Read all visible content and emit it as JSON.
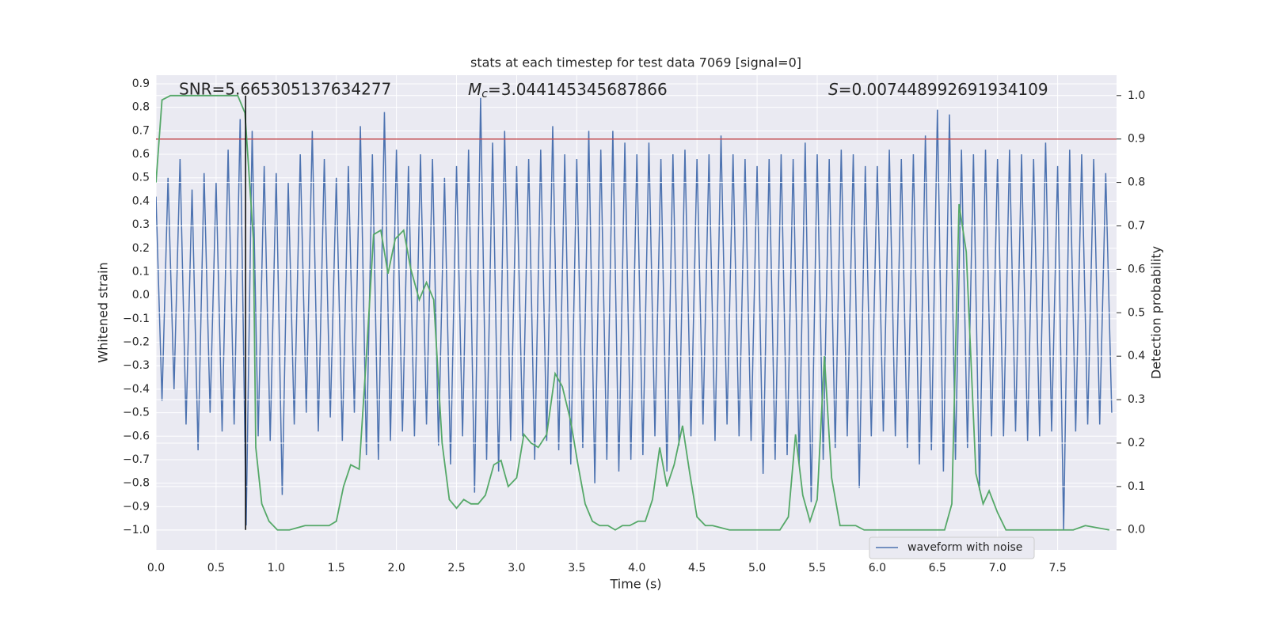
{
  "chart_data": {
    "type": "line",
    "title": "stats at each timestep for test data 7069 [signal=0]",
    "x_label": "Time (s)",
    "y_label": "Whitened strain",
    "y2_label": "Detection probability",
    "snr_label": "SNR=5.665305137634277",
    "chirp_mass": {
      "symbol": "M",
      "subscript": "c",
      "value_text": "=3.044145345687866"
    },
    "s_label": {
      "symbol": "S",
      "value_text": "=0.007448992691934109"
    },
    "xlim": [
      0,
      7.99
    ],
    "ylim": [
      -1.084,
      0.937
    ],
    "y2lim": [
      -0.046,
      1.047
    ],
    "xticks": [
      {
        "value": 0,
        "label": "0.0"
      },
      0.5,
      {
        "value": 1,
        "label": "1.0"
      },
      1.5,
      {
        "value": 2,
        "label": "2.0"
      },
      2.5,
      {
        "value": 3,
        "label": "3.0"
      },
      3.5,
      {
        "value": 4,
        "label": "4.0"
      },
      4.5,
      {
        "value": 5,
        "label": "5.0"
      },
      5.5,
      {
        "value": 6,
        "label": "6.0"
      },
      6.5,
      {
        "value": 7,
        "label": "7.0"
      },
      7.5
    ],
    "yticks": [
      {
        "value": -1,
        "label": "−1.0"
      },
      {
        "value": -0.9,
        "label": "−0.9"
      },
      {
        "value": -0.8,
        "label": "−0.8"
      },
      {
        "value": -0.7,
        "label": "−0.7"
      },
      {
        "value": -0.6,
        "label": "−0.6"
      },
      {
        "value": -0.5,
        "label": "−0.5"
      },
      {
        "value": -0.4,
        "label": "−0.4"
      },
      {
        "value": -0.3,
        "label": "−0.3"
      },
      {
        "value": -0.2,
        "label": "−0.2"
      },
      {
        "value": -0.1,
        "label": "−0.1"
      },
      {
        "value": 0,
        "label": "0.0"
      },
      0.1,
      0.2,
      0.3,
      0.4,
      0.5,
      0.6,
      0.7,
      0.8,
      0.9
    ],
    "y2ticks": [
      {
        "value": 0,
        "label": "0.0"
      },
      0.1,
      0.2,
      0.3,
      0.4,
      0.5,
      0.6,
      0.7,
      0.8,
      0.9,
      {
        "value": 1,
        "label": "1.0"
      }
    ],
    "grid": true,
    "y2grid": true,
    "background": "#eaeaf2",
    "legend": "lower right",
    "threshold": {
      "value": 0.9,
      "axis": "y2",
      "color": "#c44e52"
    },
    "marker_time": {
      "value": 0.745,
      "color": "#000000"
    },
    "series": [
      {
        "name": "waveform with noise",
        "color": "#4c72b0",
        "x": [
          0,
          0.05,
          0.1,
          0.15,
          0.2,
          0.25,
          0.3,
          0.35,
          0.4,
          0.45,
          0.5,
          0.55,
          0.6,
          0.65,
          0.7,
          0.75,
          0.8,
          0.85,
          0.9,
          0.95,
          1,
          1.05,
          1.1,
          1.15,
          1.2,
          1.25,
          1.3,
          1.35,
          1.4,
          1.45,
          1.5,
          1.55,
          1.6,
          1.65,
          1.7,
          1.75,
          1.8,
          1.85,
          1.9,
          1.95,
          2,
          2.05,
          2.1,
          2.15,
          2.2,
          2.25,
          2.3,
          2.35,
          2.4,
          2.45,
          2.5,
          2.55,
          2.6,
          2.65,
          2.7,
          2.75,
          2.8,
          2.85,
          2.9,
          2.95,
          3,
          3.05,
          3.1,
          3.15,
          3.2,
          3.25,
          3.3,
          3.35,
          3.4,
          3.45,
          3.5,
          3.55,
          3.6,
          3.65,
          3.7,
          3.75,
          3.8,
          3.85,
          3.9,
          3.95,
          4,
          4.05,
          4.1,
          4.15,
          4.2,
          4.25,
          4.3,
          4.35,
          4.4,
          4.45,
          4.5,
          4.55,
          4.6,
          4.65,
          4.7,
          4.75,
          4.8,
          4.85,
          4.9,
          4.95,
          5,
          5.05,
          5.1,
          5.15,
          5.2,
          5.25,
          5.3,
          5.35,
          5.4,
          5.45,
          5.5,
          5.55,
          5.6,
          5.65,
          5.7,
          5.75,
          5.8,
          5.85,
          5.9,
          5.95,
          6,
          6.05,
          6.1,
          6.15,
          6.2,
          6.25,
          6.3,
          6.35,
          6.4,
          6.45,
          6.5,
          6.55,
          6.6,
          6.65,
          6.7,
          6.75,
          6.8,
          6.85,
          6.9,
          6.95,
          7,
          7.05,
          7.1,
          7.15,
          7.2,
          7.25,
          7.3,
          7.35,
          7.4,
          7.45,
          7.5,
          7.55,
          7.6,
          7.65,
          7.7,
          7.75,
          7.8,
          7.85,
          7.9,
          7.95
        ],
        "values": [
          0.42,
          -0.45,
          0.5,
          -0.4,
          0.58,
          -0.55,
          0.45,
          -0.66,
          0.52,
          -0.5,
          0.48,
          -0.58,
          0.62,
          -0.55,
          0.75,
          -0.98,
          0.7,
          -0.6,
          0.55,
          -0.62,
          0.52,
          -0.85,
          0.48,
          -0.55,
          0.6,
          -0.5,
          0.7,
          -0.58,
          0.58,
          -0.52,
          0.5,
          -0.62,
          0.55,
          -0.5,
          0.72,
          -0.68,
          0.6,
          -0.7,
          0.78,
          -0.62,
          0.62,
          -0.58,
          0.55,
          -0.6,
          0.6,
          -0.55,
          0.58,
          -0.64,
          0.5,
          -0.72,
          0.55,
          -0.6,
          0.62,
          -0.84,
          0.84,
          -0.7,
          0.65,
          -0.75,
          0.7,
          -0.62,
          0.55,
          -0.6,
          0.58,
          -0.7,
          0.62,
          -0.62,
          0.72,
          -0.66,
          0.6,
          -0.72,
          0.58,
          -0.65,
          0.7,
          -0.8,
          0.62,
          -0.7,
          0.7,
          -0.75,
          0.65,
          -0.7,
          0.6,
          -0.68,
          0.65,
          -0.6,
          0.58,
          -0.75,
          0.6,
          -0.64,
          0.62,
          -0.6,
          0.58,
          -0.55,
          0.6,
          -0.62,
          0.68,
          -0.55,
          0.6,
          -0.6,
          0.58,
          -0.62,
          0.55,
          -0.76,
          0.58,
          -0.7,
          0.6,
          -0.68,
          0.58,
          -0.72,
          0.65,
          -0.88,
          0.6,
          -0.7,
          0.58,
          -0.65,
          0.62,
          -0.6,
          0.6,
          -0.82,
          0.55,
          -0.6,
          0.55,
          -0.58,
          0.62,
          -0.6,
          0.58,
          -0.65,
          0.6,
          -0.72,
          0.68,
          -0.66,
          0.79,
          -0.75,
          0.77,
          -0.7,
          0.62,
          -0.65,
          0.6,
          -0.83,
          0.62,
          -0.6,
          0.58,
          -0.6,
          0.62,
          -0.58,
          0.6,
          -0.62,
          0.58,
          -0.6,
          0.65,
          -0.58,
          0.55,
          -1.0,
          0.62,
          -0.58,
          0.6,
          -0.55,
          0.58,
          -0.55,
          0.52,
          -0.5
        ]
      }
    ],
    "probability": {
      "axis": "y2",
      "color": "#55a868",
      "x": [
        0.0,
        0.05,
        0.12,
        0.68,
        0.74,
        0.81,
        0.83,
        0.88,
        0.94,
        1.01,
        1.11,
        1.24,
        1.37,
        1.44,
        1.5,
        1.56,
        1.62,
        1.69,
        1.75,
        1.81,
        1.87,
        1.93,
        1.99,
        2.06,
        2.12,
        2.19,
        2.25,
        2.31,
        2.38,
        2.44,
        2.5,
        2.56,
        2.62,
        2.68,
        2.74,
        2.81,
        2.87,
        2.93,
        3.0,
        3.06,
        3.12,
        3.18,
        3.25,
        3.32,
        3.38,
        3.45,
        3.51,
        3.57,
        3.63,
        3.69,
        3.76,
        3.82,
        3.88,
        3.94,
        4.01,
        4.07,
        4.13,
        4.19,
        4.25,
        4.31,
        4.38,
        4.44,
        4.5,
        4.57,
        4.63,
        4.77,
        4.9,
        5.03,
        5.19,
        5.26,
        5.32,
        5.38,
        5.44,
        5.5,
        5.56,
        5.62,
        5.69,
        5.75,
        5.82,
        5.89,
        5.95,
        6.12,
        6.35,
        6.51,
        6.56,
        6.62,
        6.68,
        6.74,
        6.82,
        6.88,
        6.93,
        7.0,
        7.07,
        7.27,
        7.53,
        7.63,
        7.73,
        7.93
      ],
      "values": [
        0.8,
        0.99,
        1.0,
        1.0,
        0.96,
        0.67,
        0.19,
        0.06,
        0.02,
        0.0,
        0.0,
        0.01,
        0.01,
        0.01,
        0.02,
        0.1,
        0.15,
        0.14,
        0.4,
        0.68,
        0.69,
        0.59,
        0.67,
        0.69,
        0.6,
        0.53,
        0.57,
        0.53,
        0.2,
        0.07,
        0.05,
        0.07,
        0.06,
        0.06,
        0.08,
        0.15,
        0.16,
        0.1,
        0.12,
        0.22,
        0.2,
        0.19,
        0.22,
        0.36,
        0.33,
        0.25,
        0.15,
        0.06,
        0.02,
        0.01,
        0.01,
        0.0,
        0.01,
        0.01,
        0.02,
        0.02,
        0.07,
        0.19,
        0.1,
        0.15,
        0.24,
        0.13,
        0.03,
        0.01,
        0.01,
        0.0,
        0.0,
        0.0,
        0.0,
        0.03,
        0.22,
        0.08,
        0.02,
        0.07,
        0.4,
        0.12,
        0.01,
        0.01,
        0.01,
        0.0,
        0.0,
        0.0,
        0.0,
        0.0,
        0.0,
        0.06,
        0.75,
        0.64,
        0.13,
        0.06,
        0.09,
        0.04,
        0.0,
        0.0,
        0.0,
        0.0,
        0.01,
        0.0
      ]
    }
  }
}
